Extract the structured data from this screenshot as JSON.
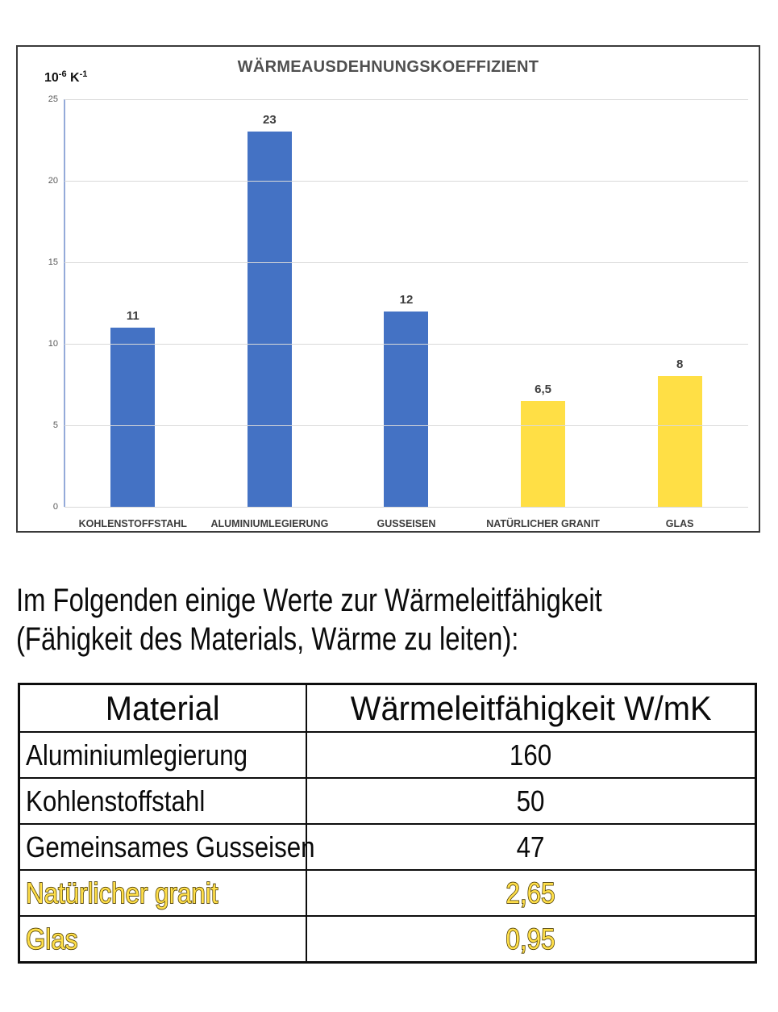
{
  "chart_ui": {
    "unit_base": "10",
    "unit_sup1": "-6",
    "unit_k": "K",
    "unit_sup2": "-1"
  },
  "chart_data": [
    {
      "type": "bar",
      "title": "WÄRMEAUSDEHNUNGSKOEFFIZIENT",
      "unit_label": "10⁻⁶ K⁻¹",
      "categories": [
        "KOHLENSTOFFSTAHL",
        "ALUMINIUMLEGIERUNG",
        "GUSSEISEN",
        "NATÜRLICHER GRANIT",
        "GLAS"
      ],
      "values": [
        11,
        23,
        12,
        6.5,
        8
      ],
      "value_labels": [
        "11",
        "23",
        "12",
        "6,5",
        "8"
      ],
      "bar_colors": [
        "#4472C4",
        "#4472C4",
        "#4472C4",
        "#FFDF45",
        "#FFDF45"
      ],
      "ylim": [
        0,
        25
      ],
      "yticks": [
        0,
        5,
        10,
        15,
        20,
        25
      ],
      "grid": true,
      "legend": false,
      "xlabel": "",
      "ylabel": "10⁻⁶ K⁻¹"
    },
    {
      "type": "table",
      "headers": [
        "Material",
        "Wärmeleitfähigkeit W/mK"
      ],
      "rows": [
        [
          "Aluminiumlegierung",
          "160"
        ],
        [
          "Kohlenstoffstahl",
          "50"
        ],
        [
          "Gemeinsames Gusseisen",
          "47"
        ],
        [
          "Natürlicher granit",
          "2,65"
        ],
        [
          "Glas",
          "0,95"
        ]
      ]
    }
  ],
  "paragraph": {
    "line1": "Im Folgenden einige Werte zur Wärmeleitfähigkeit",
    "line2": "(Fähigkeit des Materials, Wärme zu leiten):"
  },
  "table": {
    "headers": [
      "Material",
      "Wärmeleitfähigkeit W/mK"
    ],
    "rows": [
      {
        "material": "Aluminiumlegierung",
        "value": "160",
        "highlight": false
      },
      {
        "material": "Kohlenstoffstahl",
        "value": "50",
        "highlight": false
      },
      {
        "material": "Gemeinsames Gusseisen",
        "value": "47",
        "highlight": false
      },
      {
        "material": "Natürlicher granit",
        "value": "2,65",
        "highlight": true
      },
      {
        "material": "Glas",
        "value": "0,95",
        "highlight": true
      }
    ]
  },
  "colors": {
    "bar_blue": "#4472C4",
    "bar_yellow": "#FFDF45",
    "gridline": "#D9D9D9",
    "axis_line": "#94AAD9",
    "chart_text": "#4F4F4F",
    "table_border": "#0D0D0D",
    "highlight_fill": "#FFDF4A",
    "highlight_outline": "#4C3C00"
  }
}
